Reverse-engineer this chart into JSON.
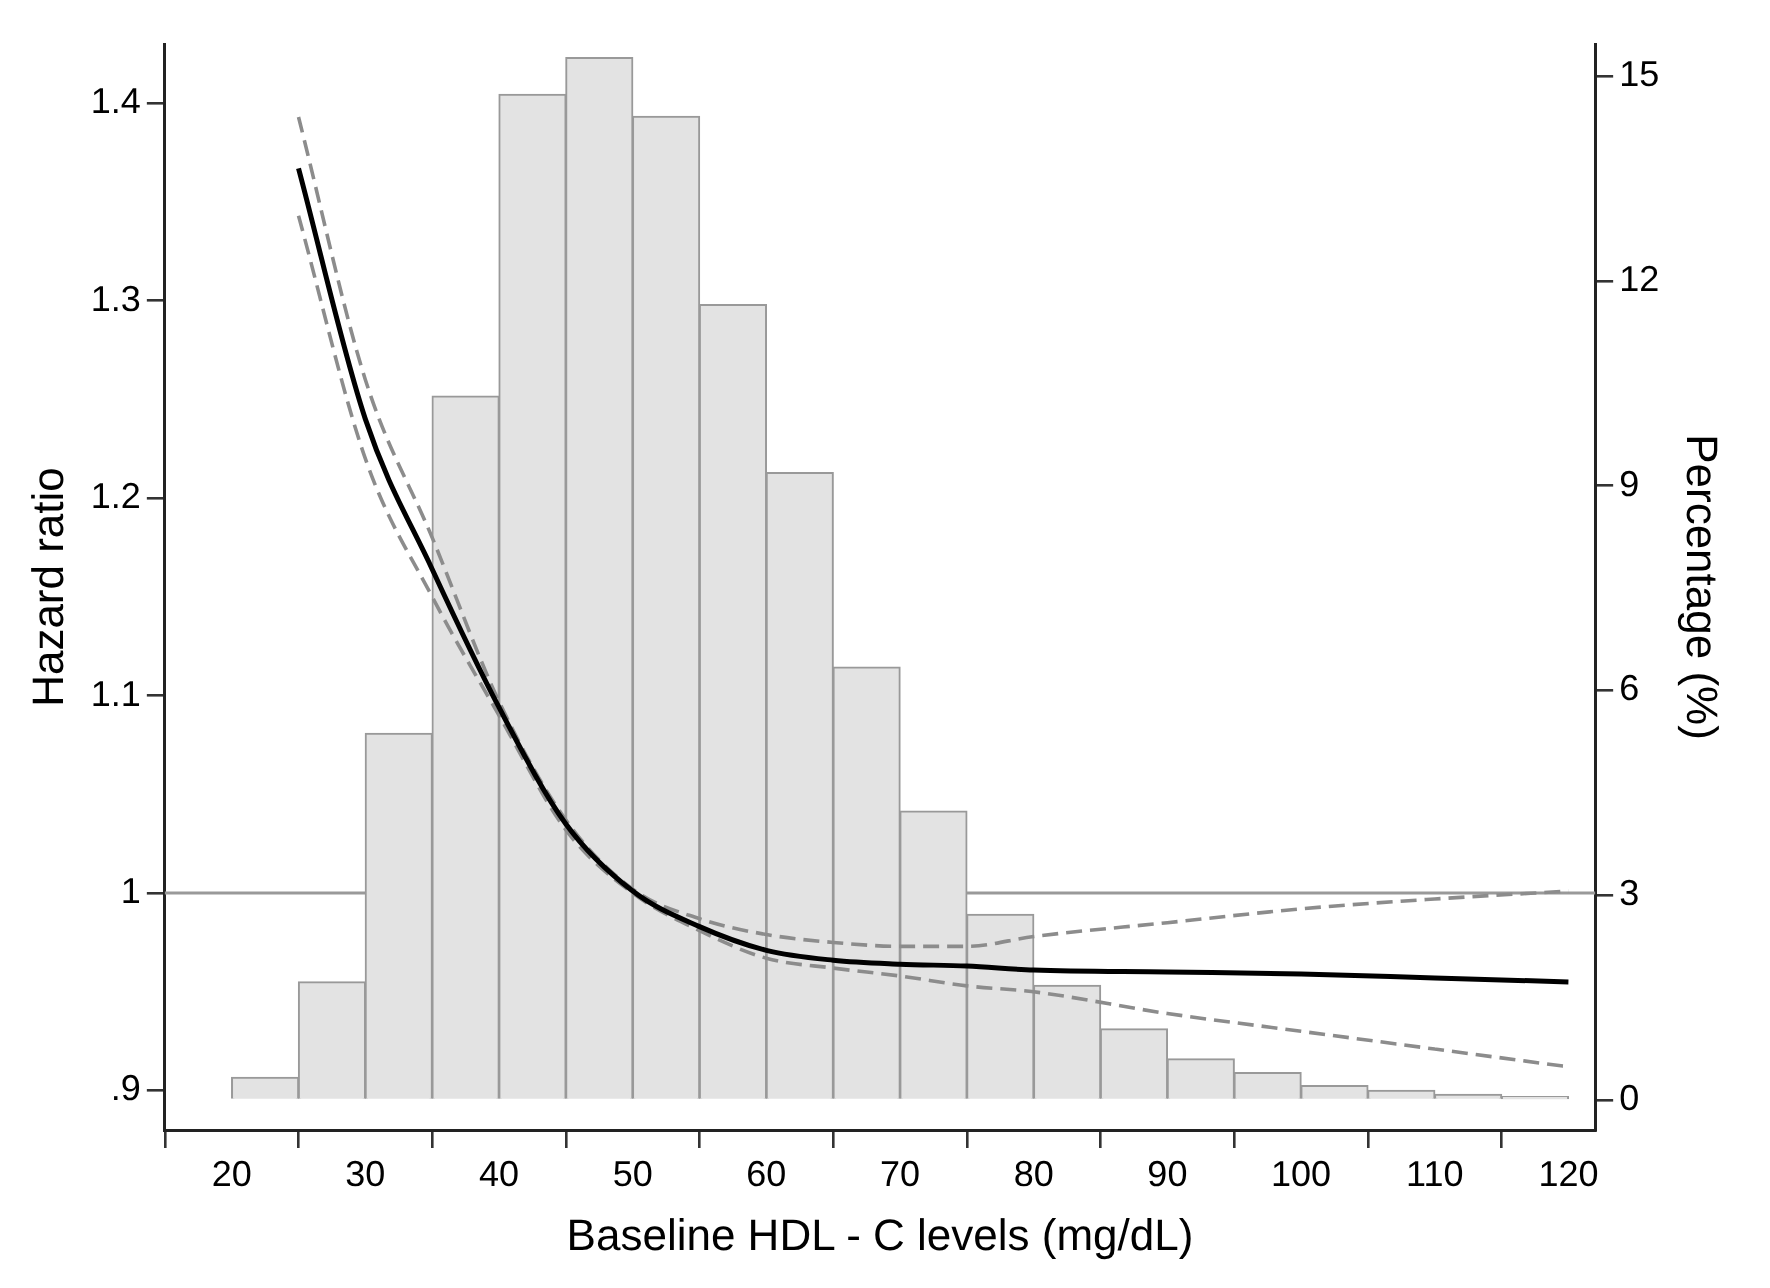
{
  "chart_data": {
    "type": "histogram",
    "xlabel": "Baseline HDL - C levels (mg/dL)",
    "ylabel": "Hazard ratio",
    "y2label": "Percentage (%)",
    "xlim": [
      15,
      122
    ],
    "xticks": [
      20,
      30,
      40,
      50,
      60,
      70,
      80,
      90,
      100,
      110,
      120
    ],
    "ylim": [
      0.88,
      1.43
    ],
    "yticks": [
      {
        "value": 0.9,
        "label": ".9"
      },
      1,
      1.1,
      1.2,
      1.3,
      1.4
    ],
    "y2lim": [
      -0.44,
      15.47
    ],
    "y2ticks": [
      0,
      3,
      6,
      9,
      12,
      15
    ],
    "grid": false,
    "legend": false,
    "ref_lines": [
      {
        "axis": "y",
        "value": 1,
        "color": "#999999"
      }
    ],
    "series": [
      {
        "axis": "y2",
        "color": "#e3e3e3",
        "bins": [
          20,
          25,
          30,
          35,
          40,
          45,
          50,
          55,
          60,
          65,
          70,
          75,
          80,
          85,
          90,
          95,
          100,
          105,
          110,
          115,
          120
        ],
        "values": [
          0.33,
          1.73,
          5.37,
          10.31,
          14.73,
          15.27,
          14.41,
          11.65,
          9.19,
          6.34,
          4.23,
          2.72,
          1.68,
          1.04,
          0.6,
          0.4,
          0.21,
          0.14,
          0.08,
          0.05
        ]
      },
      {
        "type": "line",
        "axis": "y",
        "color": "#000000",
        "line_style": "solid",
        "x": [
          25,
          30,
          35,
          40,
          45,
          50,
          55,
          60,
          65,
          70,
          75,
          80,
          90,
          100,
          110,
          120
        ],
        "values": [
          1.367,
          1.24,
          1.164,
          1.094,
          1.035,
          1.001,
          0.983,
          0.971,
          0.966,
          0.964,
          0.963,
          0.961,
          0.96,
          0.959,
          0.957,
          0.955
        ]
      },
      {
        "type": "line",
        "axis": "y",
        "color": "#8c8c8c",
        "line_style": "dashed",
        "x": [
          25,
          30,
          35,
          40,
          45,
          50,
          55,
          60,
          65,
          70,
          75,
          80,
          90,
          100,
          110,
          120
        ],
        "values": [
          1.343,
          1.22,
          1.15,
          1.09,
          1.032,
          1.0,
          0.981,
          0.967,
          0.962,
          0.958,
          0.953,
          0.95,
          0.939,
          0.93,
          0.921,
          0.912
        ]
      },
      {
        "type": "line",
        "axis": "y",
        "color": "#8c8c8c",
        "line_style": "dashed",
        "x": [
          25,
          30,
          35,
          40,
          45,
          50,
          55,
          60,
          65,
          70,
          75,
          80,
          90,
          100,
          110,
          120
        ],
        "values": [
          1.393,
          1.26,
          1.18,
          1.097,
          1.037,
          1.002,
          0.987,
          0.979,
          0.975,
          0.973,
          0.973,
          0.978,
          0.985,
          0.992,
          0.997,
          1.001
        ]
      }
    ]
  }
}
